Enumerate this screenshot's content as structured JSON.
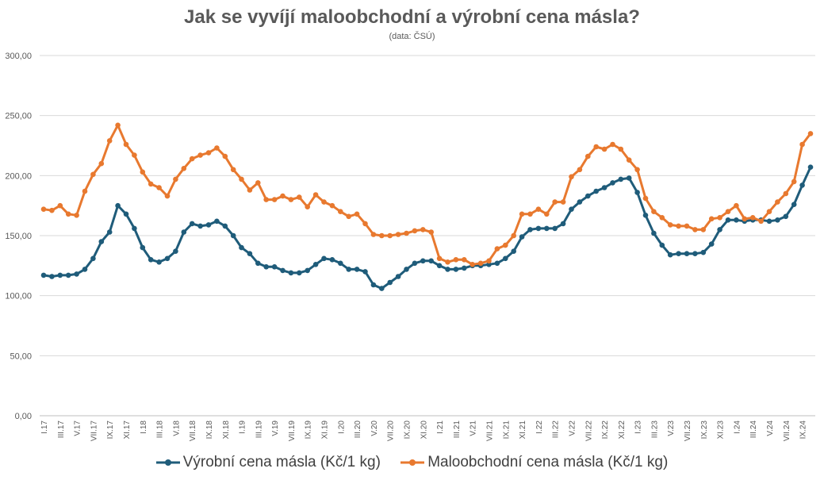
{
  "chart_data": {
    "type": "line",
    "title": "Jak se vyvíjí maloobchodní a výrobní cena másla?",
    "subtitle": "(data: ČSÚ)",
    "ylim": [
      0,
      300
    ],
    "yticks": [
      "0,00",
      "50,00",
      "100,00",
      "150,00",
      "200,00",
      "250,00",
      "300,00"
    ],
    "ytick_values": [
      0,
      50,
      100,
      150,
      200,
      250,
      300
    ],
    "grid": true,
    "legend_position": "bottom",
    "x": [
      "I.17",
      "II.17",
      "III.17",
      "IV.17",
      "V.17",
      "VI.17",
      "VII.17",
      "VIII.17",
      "IX.17",
      "X.17",
      "XI.17",
      "XII.17",
      "I.18",
      "II.18",
      "III.18",
      "IV.18",
      "V.18",
      "VI.18",
      "VII.18",
      "VIII.18",
      "IX.18",
      "X.18",
      "XI.18",
      "XII.18",
      "I.19",
      "II.19",
      "III.19",
      "IV.19",
      "V.19",
      "VI.19",
      "VII.19",
      "VIII.19",
      "IX.19",
      "X.19",
      "XI.19",
      "XII.19",
      "I.20",
      "II.20",
      "III.20",
      "IV.20",
      "V.20",
      "VI.20",
      "VII.20",
      "VIII.20",
      "IX.20",
      "X.20",
      "XI.20",
      "XII.20",
      "I.21",
      "II.21",
      "III.21",
      "IV.21",
      "V.21",
      "VI.21",
      "VII.21",
      "VIII.21",
      "IX.21",
      "X.21",
      "XI.21",
      "XII.21",
      "I.22",
      "II.22",
      "III.22",
      "IV.22",
      "V.22",
      "VI.22",
      "VII.22",
      "VIII.22",
      "IX.22",
      "X.22",
      "XI.22",
      "XII.22",
      "I.23",
      "II.23",
      "III.23",
      "IV.23",
      "V.23",
      "VI.23",
      "VII.23",
      "VIII.23",
      "IX.23",
      "X.23",
      "XI.23",
      "XII.23",
      "I.24",
      "II.24",
      "III.24",
      "IV.24",
      "V.24",
      "VI.24",
      "VII.24",
      "VIII.24",
      "IX.24",
      "X.24"
    ],
    "xtick_labels": [
      "I.17",
      "III.17",
      "V.17",
      "VII.17",
      "IX.17",
      "XI.17",
      "I.18",
      "III.18",
      "V.18",
      "VII.18",
      "IX.18",
      "XI.18",
      "I.19",
      "III.19",
      "V.19",
      "VII.19",
      "IX.19",
      "XI.19",
      "I.20",
      "III.20",
      "V.20",
      "VII.20",
      "IX.20",
      "XI.20",
      "I.21",
      "III.21",
      "V.21",
      "VII.21",
      "IX.21",
      "XI.21",
      "I.22",
      "III.22",
      "V.22",
      "VII.22",
      "IX.22",
      "XI.22",
      "I.23",
      "III.23",
      "V.23",
      "VII.23",
      "IX.23",
      "XI.23",
      "I.24",
      "III.24",
      "V.24",
      "VII.24",
      "IX.24"
    ],
    "series": [
      {
        "name": "Výrobní cena másla (Kč/1 kg)",
        "color": "#1f5c7a",
        "values": [
          117,
          116,
          117,
          117,
          118,
          122,
          131,
          145,
          153,
          175,
          168,
          156,
          140,
          130,
          128,
          131,
          137,
          153,
          160,
          158,
          159,
          162,
          158,
          150,
          140,
          135,
          127,
          124,
          124,
          121,
          119,
          119,
          121,
          126,
          131,
          130,
          127,
          122,
          122,
          120,
          109,
          106,
          111,
          116,
          122,
          127,
          129,
          129,
          125,
          122,
          122,
          123,
          125,
          125,
          126,
          127,
          131,
          137,
          149,
          155,
          156,
          156,
          156,
          160,
          172,
          178,
          183,
          187,
          190,
          194,
          197,
          198,
          186,
          167,
          152,
          142,
          134,
          135,
          135,
          135,
          136,
          143,
          155,
          163,
          163,
          162,
          163,
          163,
          162,
          163,
          166,
          176,
          192,
          207
        ]
      },
      {
        "name": "Maloobchodní cena másla (Kč/1 kg)",
        "color": "#e8792f",
        "values": [
          172,
          171,
          175,
          168,
          167,
          187,
          201,
          210,
          229,
          242,
          226,
          217,
          203,
          193,
          190,
          183,
          197,
          206,
          214,
          217,
          219,
          223,
          216,
          205,
          197,
          188,
          194,
          180,
          180,
          183,
          180,
          182,
          174,
          184,
          178,
          175,
          170,
          166,
          168,
          160,
          151,
          150,
          150,
          151,
          152,
          154,
          155,
          153,
          131,
          128,
          130,
          130,
          126,
          127,
          129,
          139,
          142,
          150,
          168,
          168,
          172,
          168,
          178,
          178,
          199,
          205,
          216,
          224,
          222,
          226,
          222,
          213,
          205,
          181,
          170,
          165,
          159,
          158,
          158,
          155,
          155,
          164,
          165,
          170,
          175,
          164,
          165,
          162,
          170,
          178,
          185,
          195,
          226,
          235
        ]
      }
    ]
  }
}
